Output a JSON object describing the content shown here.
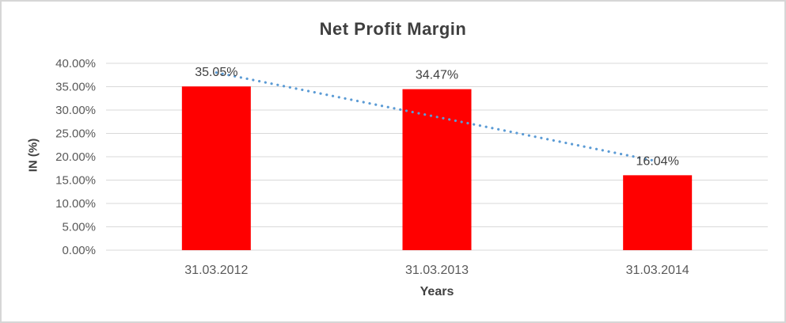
{
  "chart_data": {
    "type": "bar",
    "title": "Net Profit Margin",
    "xlabel": "Years",
    "ylabel": "IN (%)",
    "categories": [
      "31.03.2012",
      "31.03.2013",
      "31.03.2014"
    ],
    "values": [
      35.05,
      34.47,
      16.04
    ],
    "data_labels": [
      "35.05%",
      "34.47%",
      "16.04%"
    ],
    "y_ticks": [
      "40.00%",
      "35.00%",
      "30.00%",
      "25.00%",
      "20.00%",
      "15.00%",
      "10.00%",
      "5.00%",
      "0.00%"
    ],
    "ylim": [
      0,
      40
    ],
    "grid": true,
    "legend": "none",
    "trendline": {
      "type": "linear",
      "style": "dotted"
    },
    "colors": {
      "bar": "#FF0000",
      "trendline": "#5B9BD5",
      "gridline": "#D9D9D9",
      "title_text": "#3F3F3F",
      "axis_text": "#595959",
      "label_text": "#404040",
      "border": "#D6D6D6"
    }
  }
}
